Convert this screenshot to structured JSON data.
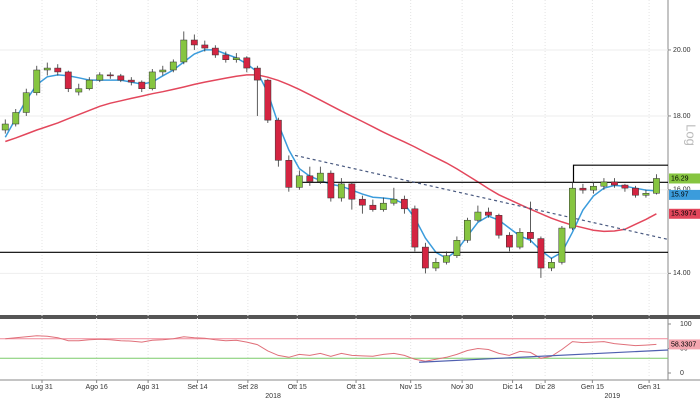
{
  "chart_data": {
    "type": "candlestick",
    "log_scale": true,
    "axis_label": "Log",
    "x": [
      0,
      1,
      2,
      3,
      4,
      5,
      6,
      7,
      8,
      9,
      10,
      11,
      12,
      13,
      14,
      15,
      16,
      17,
      18,
      19,
      20,
      21,
      22,
      23,
      24,
      25,
      26,
      27,
      28,
      29,
      30,
      31,
      32,
      33,
      34,
      35,
      36,
      37,
      38,
      39,
      40,
      41,
      42,
      43,
      44,
      45,
      46,
      47,
      48,
      49,
      50,
      51,
      52,
      53,
      54,
      55,
      56,
      57,
      58,
      59,
      60,
      61,
      62
    ],
    "xlim": [
      -0.5,
      63.1
    ],
    "xticks": [
      {
        "value": 3.5,
        "label": "Lug 31"
      },
      {
        "value": 8.7,
        "label": "Ago 16"
      },
      {
        "value": 13.6,
        "label": "Ago 31"
      },
      {
        "value": 18.3,
        "label": "Set 14"
      },
      {
        "value": 23.1,
        "label": "Set 28"
      },
      {
        "value": 27.8,
        "label": "Ott 15"
      },
      {
        "value": 33.4,
        "label": "Ott 31"
      },
      {
        "value": 38.6,
        "label": "Nov 15"
      },
      {
        "value": 43.5,
        "label": "Nov 30"
      },
      {
        "value": 48.3,
        "label": "Dic 14"
      },
      {
        "value": 51.4,
        "label": "Dic 28"
      },
      {
        "value": 55.9,
        "label": "Gen 15"
      },
      {
        "value": 61.3,
        "label": "Gen 31"
      }
    ],
    "year_labels": [
      {
        "value": 25.5,
        "label": "2018"
      },
      {
        "value": 57.8,
        "label": "2019"
      }
    ],
    "ylim": [
      13.1,
      21.66
    ],
    "yticks": [
      {
        "value": 14,
        "label": "14.00"
      },
      {
        "value": 16,
        "label": "16.00"
      },
      {
        "value": 18,
        "label": "18.00"
      },
      {
        "value": 20,
        "label": "20.00"
      }
    ],
    "grid": true,
    "up_color": "#86c540",
    "down_color": "#d42441",
    "ohlc": [
      [
        17.6,
        17.9,
        17.5,
        17.77
      ],
      [
        17.77,
        18.2,
        17.7,
        18.1
      ],
      [
        18.1,
        18.8,
        18.0,
        18.68
      ],
      [
        18.68,
        19.5,
        18.6,
        19.37
      ],
      [
        19.37,
        19.6,
        19.2,
        19.43
      ],
      [
        19.43,
        19.55,
        19.2,
        19.31
      ],
      [
        19.31,
        19.35,
        18.7,
        18.8
      ],
      [
        18.7,
        18.95,
        18.6,
        18.8
      ],
      [
        18.8,
        19.15,
        18.75,
        19.06
      ],
      [
        19.06,
        19.3,
        19.0,
        19.22
      ],
      [
        19.22,
        19.3,
        19.1,
        19.19
      ],
      [
        19.19,
        19.25,
        19.0,
        19.06
      ],
      [
        19.06,
        19.15,
        18.9,
        19.0
      ],
      [
        19.0,
        19.05,
        18.7,
        18.8
      ],
      [
        18.8,
        19.4,
        18.75,
        19.31
      ],
      [
        19.31,
        19.5,
        19.2,
        19.37
      ],
      [
        19.37,
        19.7,
        19.3,
        19.62
      ],
      [
        19.62,
        20.6,
        19.55,
        20.32
      ],
      [
        20.32,
        20.5,
        20.0,
        20.16
      ],
      [
        20.16,
        20.3,
        19.95,
        20.06
      ],
      [
        20.06,
        20.15,
        19.75,
        19.84
      ],
      [
        19.84,
        19.95,
        19.6,
        19.69
      ],
      [
        19.69,
        19.9,
        19.6,
        19.75
      ],
      [
        19.75,
        19.8,
        19.3,
        19.43
      ],
      [
        19.43,
        19.5,
        18.0,
        19.06
      ],
      [
        19.06,
        19.1,
        17.8,
        17.88
      ],
      [
        17.88,
        17.95,
        16.6,
        16.77
      ],
      [
        16.77,
        16.9,
        15.95,
        16.06
      ],
      [
        16.06,
        16.5,
        16.0,
        16.36
      ],
      [
        16.36,
        16.6,
        16.1,
        16.21
      ],
      [
        16.21,
        16.6,
        16.15,
        16.43
      ],
      [
        16.43,
        16.5,
        15.7,
        15.79
      ],
      [
        15.79,
        16.3,
        15.7,
        16.15
      ],
      [
        16.15,
        16.2,
        15.5,
        15.76
      ],
      [
        15.76,
        15.85,
        15.4,
        15.61
      ],
      [
        15.61,
        15.75,
        15.45,
        15.5
      ],
      [
        15.5,
        15.8,
        15.45,
        15.66
      ],
      [
        15.66,
        16.05,
        15.6,
        15.76
      ],
      [
        15.76,
        15.85,
        15.4,
        15.52
      ],
      [
        15.52,
        15.6,
        14.5,
        14.6
      ],
      [
        14.6,
        14.7,
        14.0,
        14.12
      ],
      [
        14.12,
        14.35,
        14.05,
        14.25
      ],
      [
        14.25,
        14.5,
        14.2,
        14.4
      ],
      [
        14.4,
        14.85,
        14.35,
        14.76
      ],
      [
        14.76,
        15.3,
        14.7,
        15.24
      ],
      [
        15.24,
        15.6,
        15.2,
        15.44
      ],
      [
        15.44,
        15.55,
        15.3,
        15.36
      ],
      [
        15.36,
        15.4,
        14.8,
        14.88
      ],
      [
        14.88,
        14.95,
        14.5,
        14.6
      ],
      [
        14.6,
        15.05,
        14.55,
        14.95
      ],
      [
        14.95,
        15.7,
        14.7,
        14.8
      ],
      [
        14.8,
        14.85,
        13.9,
        14.12
      ],
      [
        14.12,
        14.35,
        14.05,
        14.25
      ],
      [
        14.25,
        15.1,
        14.2,
        15.05
      ],
      [
        15.05,
        16.2,
        15.0,
        16.04
      ],
      [
        16.04,
        16.15,
        15.9,
        15.99
      ],
      [
        15.99,
        16.2,
        15.9,
        16.09
      ],
      [
        16.09,
        16.3,
        16.0,
        16.2
      ],
      [
        16.2,
        16.3,
        16.05,
        16.12
      ],
      [
        16.12,
        16.15,
        15.95,
        16.04
      ],
      [
        16.04,
        16.1,
        15.8,
        15.86
      ],
      [
        15.86,
        16.0,
        15.8,
        15.91
      ],
      [
        15.91,
        16.4,
        15.88,
        16.29
      ]
    ],
    "series": [
      {
        "color": "#3b9cdc",
        "values": [
          17.4,
          17.93,
          18.46,
          18.92,
          19.16,
          19.22,
          19.19,
          19.13,
          19.06,
          19.06,
          19.06,
          19.06,
          19.0,
          18.94,
          19.0,
          19.19,
          19.37,
          19.62,
          19.87,
          20.0,
          20.0,
          19.87,
          19.75,
          19.56,
          19.31,
          18.68,
          17.77,
          17.05,
          16.55,
          16.35,
          16.24,
          16.14,
          16.09,
          15.99,
          15.89,
          15.81,
          15.79,
          15.76,
          15.64,
          15.29,
          14.81,
          14.48,
          14.34,
          14.52,
          14.86,
          15.19,
          15.34,
          15.24,
          15.05,
          14.86,
          14.76,
          14.52,
          14.34,
          14.48,
          14.95,
          15.49,
          15.84,
          16.04,
          16.11,
          16.09,
          16.04,
          15.99,
          15.97
        ]
      },
      {
        "color": "#e3475c",
        "values": [
          17.28,
          17.38,
          17.49,
          17.6,
          17.7,
          17.8,
          17.92,
          18.04,
          18.16,
          18.28,
          18.37,
          18.44,
          18.51,
          18.58,
          18.65,
          18.71,
          18.78,
          18.85,
          18.93,
          19.0,
          19.06,
          19.12,
          19.18,
          19.22,
          19.22,
          19.15,
          19.05,
          18.92,
          18.78,
          18.62,
          18.46,
          18.3,
          18.14,
          17.99,
          17.84,
          17.69,
          17.54,
          17.4,
          17.27,
          17.13,
          16.98,
          16.84,
          16.7,
          16.54,
          16.37,
          16.2,
          16.03,
          15.87,
          15.75,
          15.63,
          15.51,
          15.4,
          15.29,
          15.2,
          15.12,
          15.06,
          15.0,
          14.97,
          14.98,
          15.02,
          15.14,
          15.26,
          15.3974
        ]
      }
    ],
    "drawings": [
      {
        "x": [
          27.9,
          63.1
        ],
        "y": [
          16.19,
          16.19
        ],
        "color": "#000000",
        "dashed": false
      },
      {
        "x": [
          54.1,
          54.1,
          63.1
        ],
        "y": [
          16.19,
          16.64,
          16.64
        ],
        "color": "#000000",
        "dashed": false
      },
      {
        "x": [
          -0.5,
          63.1
        ],
        "y": [
          14.48,
          14.48
        ],
        "color": "#000000",
        "dashed": false
      },
      {
        "x": [
          27.6,
          63.1
        ],
        "y": [
          16.9,
          14.78
        ],
        "color": "#4a5a80",
        "dashed": true
      }
    ],
    "rsi": {
      "color": "#e0707a",
      "ylim": [
        0,
        100
      ],
      "yticks": [
        0,
        50,
        100
      ],
      "values": [
        70,
        72,
        74,
        76,
        75,
        72,
        66,
        66,
        68,
        69,
        68,
        66,
        65,
        63,
        67,
        68,
        70,
        74,
        72,
        71,
        68,
        66,
        67,
        63,
        58,
        45,
        36,
        32,
        38,
        36,
        40,
        34,
        40,
        36,
        35,
        34,
        38,
        40,
        36,
        28,
        24,
        28,
        32,
        38,
        46,
        50,
        48,
        40,
        36,
        44,
        42,
        30,
        34,
        48,
        64,
        62,
        63,
        64,
        60,
        58,
        56,
        57,
        58.3307
      ],
      "levels": [
        {
          "value": 70,
          "color": "#f08a9a"
        },
        {
          "value": 30,
          "color": "#7ccc6a"
        }
      ],
      "trendline": {
        "x": [
          39.4,
          63.1
        ],
        "y": [
          22,
          47
        ],
        "color": "#5060b0"
      }
    }
  }
}
